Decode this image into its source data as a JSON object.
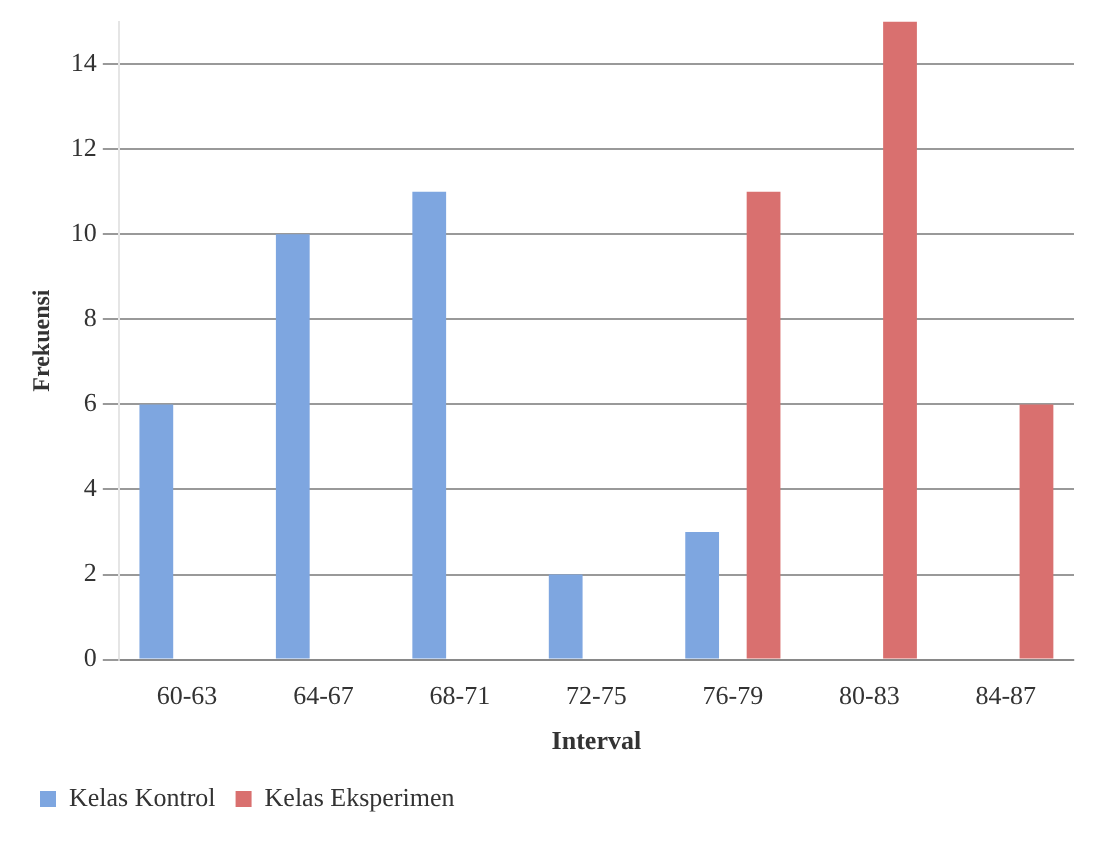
{
  "chart_data": {
    "type": "bar",
    "xlabel": "Interval",
    "ylabel": "Frekuensi",
    "categories": [
      "60-63",
      "64-67",
      "68-71",
      "72-75",
      "76-79",
      "80-83",
      "84-87"
    ],
    "series": [
      {
        "name": "Kelas Kontrol",
        "color": "#7ea6e0",
        "values": [
          6,
          10,
          11,
          2,
          3,
          0,
          0
        ]
      },
      {
        "name": "Kelas Eksperimen",
        "color": "#d9706f",
        "values": [
          0,
          0,
          0,
          0,
          11,
          15,
          6
        ]
      }
    ],
    "ylim": [
      0,
      15
    ],
    "yticks": [
      0,
      2,
      4,
      6,
      8,
      10,
      12,
      14
    ],
    "grid": "y",
    "legend": "bottom"
  }
}
